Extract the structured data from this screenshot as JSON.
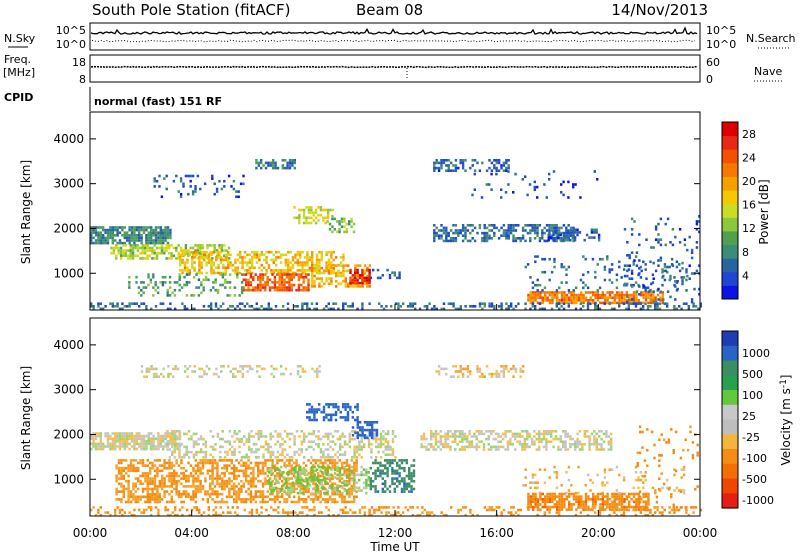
{
  "header": {
    "station": "South Pole Station (fitACF)",
    "beam": "Beam 08",
    "date": "14/Nov/2013"
  },
  "params": {
    "nsky_label": "N.Sky",
    "nsky_ticks": [
      "10^5",
      "10^0"
    ],
    "nsearch_label": "N.Search",
    "freq_label": "Freq.",
    "freq_unit": "[MHz]",
    "freq_ticks": [
      "18",
      "8"
    ],
    "nave_ticks": [
      "60",
      "0"
    ],
    "nave_label": "Nave",
    "cpid_label": "CPID",
    "cpid_value": "normal (fast) 151 RF"
  },
  "axes": {
    "ylabel": "Slant Range [km]",
    "xlabel": "Time UT",
    "yticks": [
      "1000",
      "2000",
      "3000",
      "4000"
    ],
    "xticks": [
      "00:00",
      "04:00",
      "08:00",
      "12:00",
      "16:00",
      "20:00",
      "00:00"
    ]
  },
  "power_scale": {
    "label": "Power [dB]",
    "ticks": [
      "4",
      "8",
      "12",
      "16",
      "20",
      "24",
      "28"
    ],
    "colors": [
      "#0a14e6",
      "#1e46d2",
      "#2864a0",
      "#3c8c78",
      "#50a050",
      "#8cc83c",
      "#c8dc28",
      "#f5c800",
      "#f5a000",
      "#f57800",
      "#f55000",
      "#e62814",
      "#dc0000"
    ]
  },
  "velocity_scale": {
    "label": "Velocity [m s",
    "label_sup": "-1",
    "label_end": "]",
    "ticks": [
      "1000",
      "500",
      "100",
      "25",
      "-25",
      "-100",
      "-500",
      "-1000"
    ],
    "colors": [
      "#1e3cb4",
      "#2864c8",
      "#3c8c64",
      "#28a050",
      "#64c83c",
      "#c8c8c8",
      "#bebebe",
      "#f5b43c",
      "#f58c14",
      "#f56e00",
      "#f04600",
      "#e61e14"
    ]
  },
  "chart_data": [
    {
      "type": "heatmap",
      "title": "Power",
      "xlabel": "Time UT",
      "ylabel": "Slant Range [km]",
      "xlim_hours": [
        0,
        24
      ],
      "ylim_km": [
        180,
        4600
      ],
      "colorbar": "Power [dB]",
      "colorbar_range": [
        0,
        30
      ],
      "bands": [
        {
          "t0": 0.0,
          "t1": 3.2,
          "r0": 1700,
          "r1": 2050,
          "level": 8,
          "density": 0.75
        },
        {
          "t0": 0.8,
          "t1": 5.5,
          "r0": 1350,
          "r1": 1650,
          "level": 14,
          "density": 0.6
        },
        {
          "t0": 3.5,
          "t1": 10.0,
          "r0": 1000,
          "r1": 1500,
          "level": 18,
          "density": 0.55
        },
        {
          "t0": 6.0,
          "t1": 8.6,
          "r0": 600,
          "r1": 1000,
          "level": 24,
          "density": 0.65
        },
        {
          "t0": 8.6,
          "t1": 11.0,
          "r0": 700,
          "r1": 1200,
          "level": 19,
          "density": 0.55
        },
        {
          "t0": 10.2,
          "t1": 11.0,
          "r0": 800,
          "r1": 1100,
          "level": 27,
          "density": 0.6
        },
        {
          "t0": 8.0,
          "t1": 9.6,
          "r0": 2100,
          "r1": 2500,
          "level": 15,
          "density": 0.5
        },
        {
          "t0": 9.3,
          "t1": 10.4,
          "r0": 1900,
          "r1": 2300,
          "level": 12,
          "density": 0.5
        },
        {
          "t0": 1.5,
          "t1": 6.0,
          "r0": 500,
          "r1": 1000,
          "level": 10,
          "density": 0.25
        },
        {
          "t0": 2.5,
          "t1": 6.0,
          "r0": 2700,
          "r1": 3200,
          "level": 5,
          "density": 0.15
        },
        {
          "t0": 6.5,
          "t1": 8.1,
          "r0": 3350,
          "r1": 3550,
          "level": 7,
          "density": 0.6
        },
        {
          "t0": 11.0,
          "t1": 12.3,
          "r0": 900,
          "r1": 1100,
          "level": 6,
          "density": 0.25
        },
        {
          "t0": 13.5,
          "t1": 19.0,
          "r0": 1700,
          "r1": 2100,
          "level": 6,
          "density": 0.55
        },
        {
          "t0": 18.0,
          "t1": 20.0,
          "r0": 1750,
          "r1": 2000,
          "level": 5,
          "density": 0.35
        },
        {
          "t0": 13.5,
          "t1": 16.5,
          "r0": 3300,
          "r1": 3550,
          "level": 5,
          "density": 0.5
        },
        {
          "t0": 15.0,
          "t1": 20.0,
          "r0": 2700,
          "r1": 3300,
          "level": 4,
          "density": 0.08
        },
        {
          "t0": 17.2,
          "t1": 22.5,
          "r0": 350,
          "r1": 600,
          "level": 22,
          "density": 0.8
        },
        {
          "t0": 17.0,
          "t1": 23.5,
          "r0": 600,
          "r1": 1400,
          "level": 6,
          "density": 0.12
        },
        {
          "t0": 0.0,
          "t1": 24.0,
          "r0": 180,
          "r1": 350,
          "level": 6,
          "density": 0.35
        },
        {
          "t0": 21.0,
          "t1": 24.0,
          "r0": 350,
          "r1": 2300,
          "level": 5,
          "density": 0.1
        }
      ]
    },
    {
      "type": "heatmap",
      "title": "Velocity",
      "xlabel": "Time UT",
      "ylabel": "Slant Range [km]",
      "xlim_hours": [
        0,
        24
      ],
      "ylim_km": [
        180,
        4600
      ],
      "colorbar": "Velocity [m s-1]",
      "bands": [
        {
          "t0": 0.0,
          "t1": 3.5,
          "r0": 1650,
          "r1": 2050,
          "vel": 0,
          "density": 0.75
        },
        {
          "t0": 3.0,
          "t1": 12.0,
          "r0": 1500,
          "r1": 2100,
          "vel": 0,
          "density": 0.4
        },
        {
          "t0": 13.0,
          "t1": 20.5,
          "r0": 1650,
          "r1": 2100,
          "vel": 0,
          "density": 0.55
        },
        {
          "t0": 1.0,
          "t1": 10.5,
          "r0": 500,
          "r1": 1450,
          "vel": -150,
          "density": 0.55
        },
        {
          "t0": 7.0,
          "t1": 9.5,
          "r0": 700,
          "r1": 1300,
          "vel": 80,
          "density": 0.5
        },
        {
          "t0": 9.6,
          "t1": 11.0,
          "r0": 700,
          "r1": 1300,
          "vel": 60,
          "density": 0.45
        },
        {
          "t0": 11.0,
          "t1": 12.7,
          "r0": 700,
          "r1": 1450,
          "vel": 400,
          "density": 0.5
        },
        {
          "t0": 8.5,
          "t1": 10.5,
          "r0": 2300,
          "r1": 2700,
          "vel": 700,
          "density": 0.55
        },
        {
          "t0": 10.3,
          "t1": 11.3,
          "r0": 1900,
          "r1": 2300,
          "vel": 600,
          "density": 0.5
        },
        {
          "t0": 17.2,
          "t1": 22.0,
          "r0": 350,
          "r1": 700,
          "vel": -350,
          "density": 0.75
        },
        {
          "t0": 17.0,
          "t1": 23.5,
          "r0": 700,
          "r1": 1300,
          "vel": -60,
          "density": 0.12
        },
        {
          "t0": 2.0,
          "t1": 9.0,
          "r0": 3300,
          "r1": 3550,
          "vel": 0,
          "density": 0.3
        },
        {
          "t0": 13.5,
          "t1": 17.0,
          "r0": 3300,
          "r1": 3550,
          "vel": -40,
          "density": 0.3
        },
        {
          "t0": 0.0,
          "t1": 24.0,
          "r0": 180,
          "r1": 400,
          "vel": -150,
          "density": 0.25
        },
        {
          "t0": 21.5,
          "t1": 24.0,
          "r0": 400,
          "r1": 2200,
          "vel": -200,
          "density": 0.08
        }
      ]
    }
  ]
}
